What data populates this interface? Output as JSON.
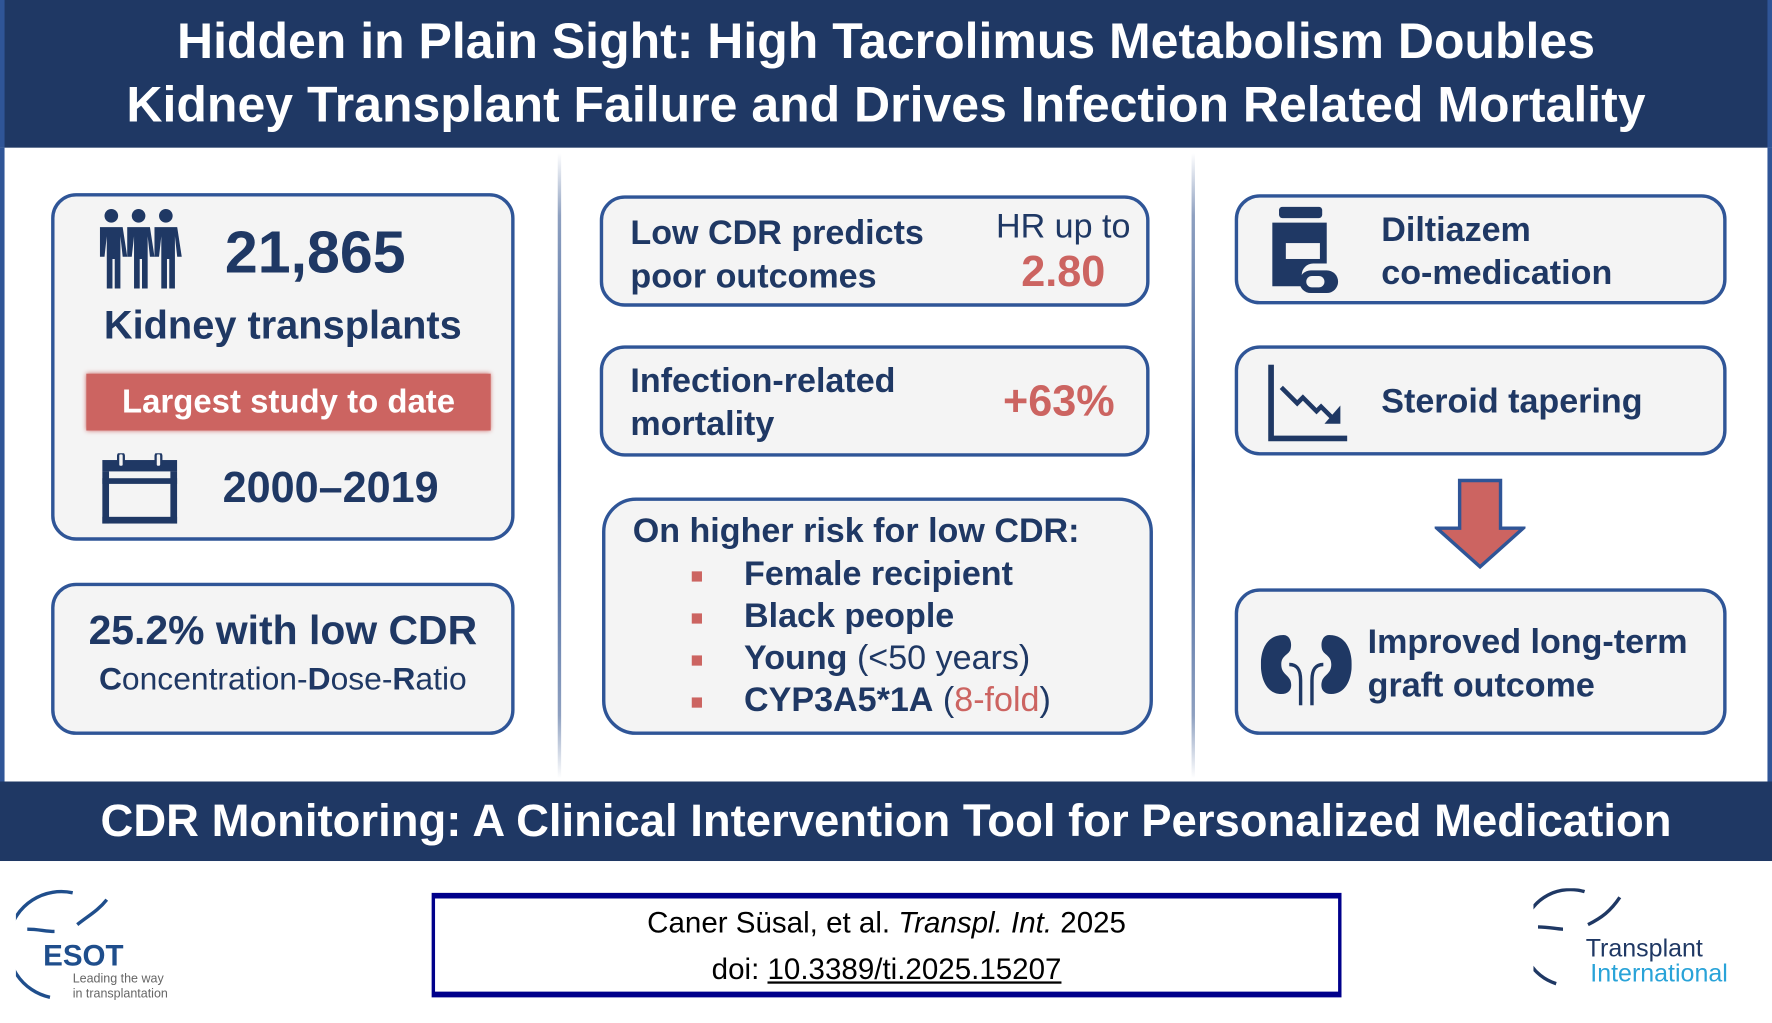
{
  "header": {
    "title_line1": "Hidden in Plain Sight: High Tacrolimus Metabolism Doubles",
    "title_line2": "Kidney Transplant Failure and Drives Infection Related Mortality"
  },
  "left": {
    "count": "21,865",
    "count_label": "Kidney transplants",
    "badge": "Largest study to date",
    "period": "2000–2019",
    "low_cdr_headline": "25.2% with low CDR",
    "cdr_def": [
      {
        "text": "C",
        "bold": true
      },
      {
        "text": "oncentration-",
        "bold": false
      },
      {
        "text": "D",
        "bold": true
      },
      {
        "text": "ose-",
        "bold": false
      },
      {
        "text": "R",
        "bold": true
      },
      {
        "text": "atio",
        "bold": false
      }
    ]
  },
  "middle": {
    "card1": {
      "line1": "Low CDR predicts",
      "line2": "poor outcomes",
      "hr_label": "HR up to",
      "hr_value": "2.80"
    },
    "card2": {
      "line1": "Infection-related",
      "line2": "mortality",
      "value": "+63%"
    },
    "card3": {
      "heading": "On higher risk for low CDR:",
      "items": [
        {
          "bold": "Female recipient"
        },
        {
          "bold": "Black people"
        },
        {
          "bold": "Young",
          "open": " (",
          "detail": "<50 years",
          "close": ")"
        },
        {
          "bold": "CYP3A5*1A",
          "open": " (",
          "detail": "8-fold",
          "close": ")"
        }
      ]
    }
  },
  "right": {
    "card1": {
      "line1": "Diltiazem",
      "line2": "co-medication"
    },
    "card2": {
      "line1": "Steroid tapering"
    },
    "card3": {
      "line1": "Improved long-term",
      "line2": "graft outcome"
    }
  },
  "footer_band": "CDR Monitoring: A Clinical Intervention Tool for Personalized Medication",
  "citation": {
    "authors": "Caner Süsal, et al. ",
    "journal": "Transpl. Int.",
    "year": " 2025",
    "doi_label": "doi: ",
    "doi": "10.3389/ti.2025.15207"
  },
  "logos": {
    "esot": {
      "name": "ESOT",
      "tagline1": "Leading the way",
      "tagline2": "in transplantation"
    },
    "ti": {
      "line1": "Transplant",
      "line2": "International"
    }
  },
  "colors": {
    "navy": "#1f3864",
    "border_blue": "#2f5597",
    "accent_red": "#cc6461",
    "card_bg": "#f4f4f4"
  }
}
